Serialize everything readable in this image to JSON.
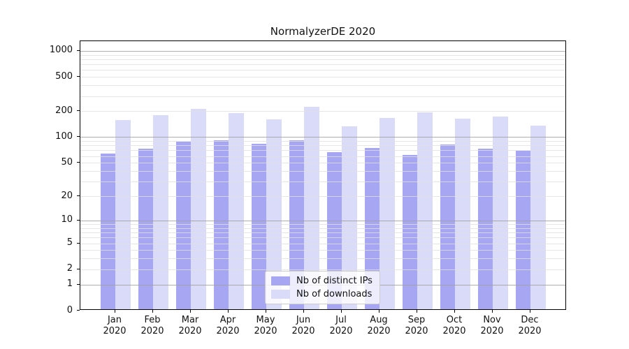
{
  "title": "NormalyzerDE 2020",
  "chart_data": {
    "type": "bar",
    "title": "NormalyzerDE 2020",
    "categories": [
      "Jan 2020",
      "Feb 2020",
      "Mar 2020",
      "Apr 2020",
      "May 2020",
      "Jun 2020",
      "Jul 2020",
      "Aug 2020",
      "Sep 2020",
      "Oct 2020",
      "Nov 2020",
      "Dec 2020"
    ],
    "months": [
      "Jan",
      "Feb",
      "Mar",
      "Apr",
      "May",
      "Jun",
      "Jul",
      "Aug",
      "Sep",
      "Oct",
      "Nov",
      "Dec"
    ],
    "year": "2020",
    "series": [
      {
        "name": "Nb of distinct IPs",
        "color": "#a6a6f2",
        "values": [
          62,
          70,
          86,
          88,
          81,
          88,
          64,
          72,
          60,
          79,
          70,
          67
        ]
      },
      {
        "name": "Nb of downloads",
        "color": "#dadaf9",
        "values": [
          152,
          174,
          206,
          182,
          156,
          217,
          129,
          160,
          186,
          157,
          167,
          130
        ]
      }
    ],
    "xlabel": "",
    "ylabel": "",
    "yscale": "log1p",
    "yticks": [
      0,
      1,
      2,
      5,
      10,
      20,
      50,
      100,
      200,
      500,
      1000
    ],
    "ylim": [
      0,
      1200
    ],
    "grid": "major+minor, drawn over bars",
    "legend_position": "lower center",
    "colors": {
      "major_grid": "#a0a0a0",
      "minor_grid": "#e0e0e0",
      "spine": "#000000",
      "background": "#ffffff"
    }
  }
}
